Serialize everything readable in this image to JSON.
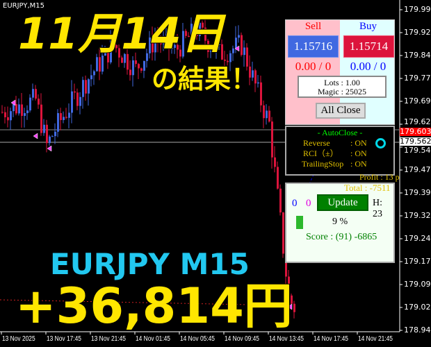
{
  "symbol_label": "EURJPY,M15",
  "overlay": {
    "date": "11月14日",
    "result": "の結果！",
    "pair": "EURJPY  M15",
    "profit": "+36,814円"
  },
  "price_axis": [
    "179.995",
    "179.920",
    "179.845",
    "179.770",
    "179.695",
    "179.620",
    "179.545",
    "179.470",
    "179.395",
    "179.320",
    "179.245",
    "179.170",
    "179.095",
    "179.020",
    "178.945"
  ],
  "time_axis": [
    "13 Nov 2025",
    "13 Nov 17:45",
    "13 Nov 21:45",
    "14 Nov 01:45",
    "14 Nov 05:45",
    "14 Nov 09:45",
    "14 Nov 13:45",
    "14 Nov 17:45",
    "14 Nov 21:45"
  ],
  "price_tags": {
    "ask": "179.603",
    "bid": "179.562",
    "ask_color": "#ff0000"
  },
  "trade_panel": {
    "sell_label": "Sell",
    "buy_label": "Buy",
    "sell_price": "1.15716",
    "buy_price": "1.15714",
    "sell_pos": "0.00 / 0",
    "buy_pos": "0.00 / 0",
    "lots": "Lots   : 1.00",
    "magic": "Magic : 25025",
    "all_close": "All Close"
  },
  "autoclose": {
    "title": "- AutoClose -",
    "rows": [
      {
        "label": "Reverse",
        "value": ": ON"
      },
      {
        "label": "RCI（±）",
        "value": ": ON"
      },
      {
        "label": "TrailingStop",
        "value": ": ON"
      }
    ]
  },
  "stats": {
    "profit": "Profit : 13 p",
    "total": "Total : -7511"
  },
  "score_panel": {
    "count_buy": "0",
    "count_sell": "0",
    "update": "Update",
    "hour": "H: 23",
    "percent": "9 %",
    "score": "Score : (91) -6865"
  },
  "colors": {
    "bull": "#4169e1",
    "bear": "#dc143c",
    "sell_bg": "#ffc0cb",
    "buy_bg": "#e0ffff"
  }
}
